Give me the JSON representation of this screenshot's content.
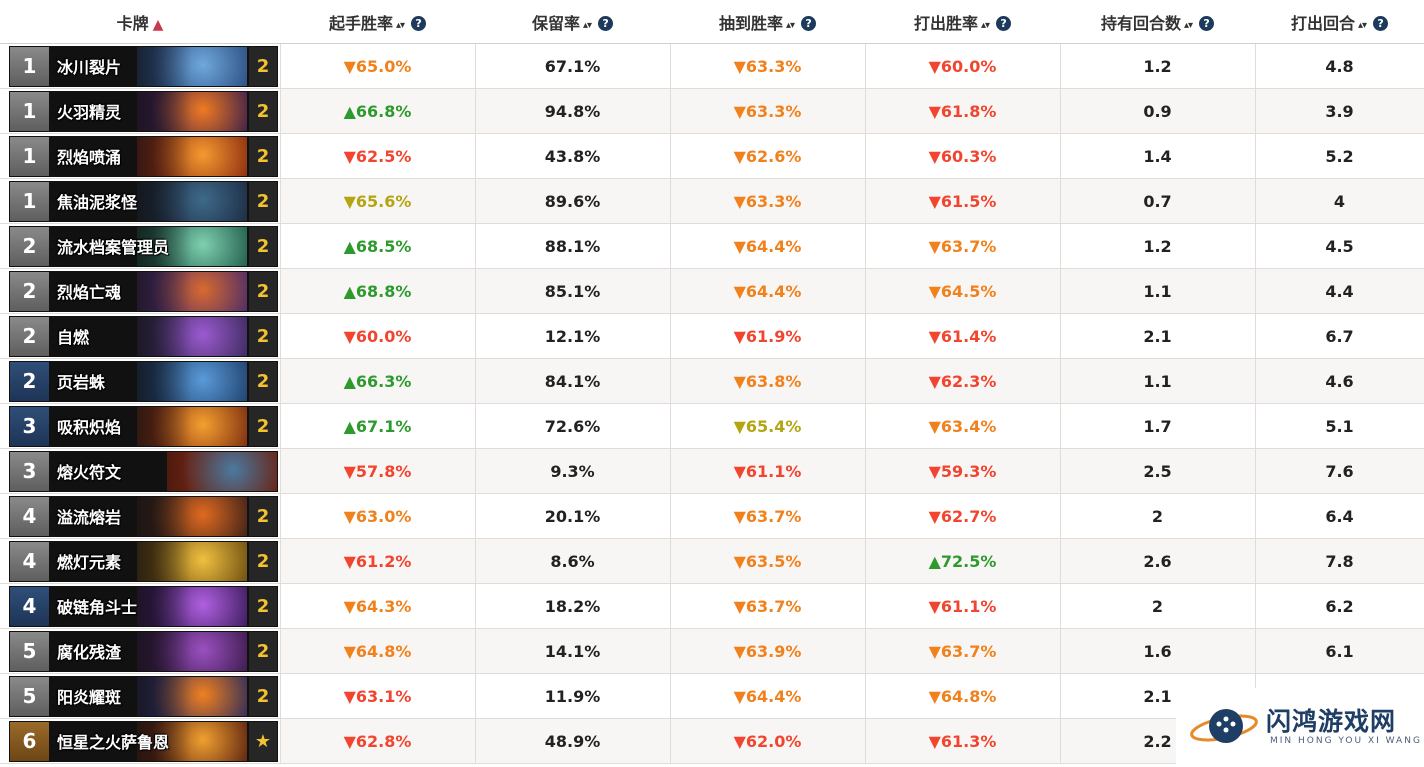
{
  "columns": {
    "card": "卡牌",
    "mulligan_winrate": "起手胜率",
    "keep_rate": "保留率",
    "drawn_winrate": "抽到胜率",
    "played_winrate": "打出胜率",
    "turns_held": "持有回合数",
    "turn_played": "打出回合"
  },
  "sort_icons": {
    "active": "▲",
    "inactive": "▴▾"
  },
  "help_icon": "?",
  "rows": [
    {
      "cost": "1",
      "name": "冰川裂片",
      "qty": "2",
      "mul": "▼65.0%",
      "keep": "67.1%",
      "drawn": "▼63.3%",
      "played": "▼60.0%",
      "held": "1.2",
      "turn": "4.8",
      "mul_c": "tr-orange",
      "drawn_c": "tr-orange",
      "played_c": "tr-down",
      "cost_c": "c-gray",
      "art": [
        "#2a4c80",
        "#6fa8dc"
      ]
    },
    {
      "cost": "1",
      "name": "火羽精灵",
      "qty": "2",
      "mul": "▲66.8%",
      "keep": "94.8%",
      "drawn": "▼63.3%",
      "played": "▼61.8%",
      "held": "0.9",
      "turn": "3.9",
      "mul_c": "tr-up",
      "drawn_c": "tr-orange",
      "played_c": "tr-down",
      "cost_c": "c-gray",
      "art": [
        "#3a1d4a",
        "#f07a22"
      ]
    },
    {
      "cost": "1",
      "name": "烈焰喷涌",
      "qty": "2",
      "mul": "▼62.5%",
      "keep": "43.8%",
      "drawn": "▼62.6%",
      "played": "▼60.3%",
      "held": "1.4",
      "turn": "5.2",
      "mul_c": "tr-down",
      "drawn_c": "tr-orange",
      "played_c": "tr-down",
      "cost_c": "c-gray",
      "art": [
        "#8a2a10",
        "#f59a30"
      ]
    },
    {
      "cost": "1",
      "name": "焦油泥浆怪",
      "qty": "2",
      "mul": "▼65.6%",
      "keep": "89.6%",
      "drawn": "▼63.3%",
      "played": "▼61.5%",
      "held": "0.7",
      "turn": "4",
      "mul_c": "tr-olive",
      "drawn_c": "tr-orange",
      "played_c": "tr-down",
      "cost_c": "c-gray",
      "art": [
        "#1c2a40",
        "#3e6a8a"
      ]
    },
    {
      "cost": "2",
      "name": "流水档案管理员",
      "qty": "2",
      "mul": "▲68.5%",
      "keep": "88.1%",
      "drawn": "▼64.4%",
      "played": "▼63.7%",
      "held": "1.2",
      "turn": "4.5",
      "mul_c": "tr-up",
      "drawn_c": "tr-orange",
      "played_c": "tr-orange",
      "cost_c": "c-gray",
      "art": [
        "#1f5a4a",
        "#7fd0b0"
      ]
    },
    {
      "cost": "2",
      "name": "烈焰亡魂",
      "qty": "2",
      "mul": "▲68.8%",
      "keep": "85.1%",
      "drawn": "▼64.4%",
      "played": "▼64.5%",
      "held": "1.1",
      "turn": "4.4",
      "mul_c": "tr-up",
      "drawn_c": "tr-orange",
      "played_c": "tr-orange",
      "cost_c": "c-gray",
      "art": [
        "#4a2a6a",
        "#d86a30"
      ]
    },
    {
      "cost": "2",
      "name": "自燃",
      "qty": "2",
      "mul": "▼60.0%",
      "keep": "12.1%",
      "drawn": "▼61.9%",
      "played": "▼61.4%",
      "held": "2.1",
      "turn": "6.7",
      "mul_c": "tr-down",
      "drawn_c": "tr-down",
      "played_c": "tr-down",
      "cost_c": "c-gray",
      "art": [
        "#3a2a5a",
        "#9b5ad0"
      ]
    },
    {
      "cost": "2",
      "name": "页岩蛛",
      "qty": "2",
      "mul": "▲66.3%",
      "keep": "84.1%",
      "drawn": "▼63.8%",
      "played": "▼62.3%",
      "held": "1.1",
      "turn": "4.6",
      "mul_c": "tr-up",
      "drawn_c": "tr-orange",
      "played_c": "tr-down",
      "cost_c": "c-blue",
      "art": [
        "#1e3f6a",
        "#5a9ad8"
      ]
    },
    {
      "cost": "3",
      "name": "吸积炽焰",
      "qty": "2",
      "mul": "▲67.1%",
      "keep": "72.6%",
      "drawn": "▼65.4%",
      "played": "▼63.4%",
      "held": "1.7",
      "turn": "5.1",
      "mul_c": "tr-up",
      "drawn_c": "tr-olive",
      "played_c": "tr-orange",
      "cost_c": "c-blue",
      "art": [
        "#7a2a10",
        "#f5a030"
      ]
    },
    {
      "cost": "3",
      "name": "熔火符文",
      "qty": "",
      "mul": "▼57.8%",
      "keep": "9.3%",
      "drawn": "▼61.1%",
      "played": "▼59.3%",
      "held": "2.5",
      "turn": "7.6",
      "mul_c": "tr-down",
      "drawn_c": "tr-down",
      "played_c": "tr-down",
      "cost_c": "c-gray",
      "art": [
        "#6a2010",
        "#4a7aa0"
      ]
    },
    {
      "cost": "4",
      "name": "溢流熔岩",
      "qty": "2",
      "mul": "▼63.0%",
      "keep": "20.1%",
      "drawn": "▼63.7%",
      "played": "▼62.7%",
      "held": "2",
      "turn": "6.4",
      "mul_c": "tr-orange",
      "drawn_c": "tr-orange",
      "played_c": "tr-down",
      "cost_c": "c-gray",
      "art": [
        "#3a2018",
        "#e06a20"
      ]
    },
    {
      "cost": "4",
      "name": "燃灯元素",
      "qty": "2",
      "mul": "▼61.2%",
      "keep": "8.6%",
      "drawn": "▼63.5%",
      "played": "▲72.5%",
      "held": "2.6",
      "turn": "7.8",
      "mul_c": "tr-down",
      "drawn_c": "tr-orange",
      "played_c": "tr-up",
      "cost_c": "c-gray",
      "art": [
        "#6a4a10",
        "#f0c040"
      ]
    },
    {
      "cost": "4",
      "name": "破链角斗士",
      "qty": "2",
      "mul": "▼64.3%",
      "keep": "18.2%",
      "drawn": "▼63.7%",
      "played": "▼61.1%",
      "held": "2",
      "turn": "6.2",
      "mul_c": "tr-orange",
      "drawn_c": "tr-orange",
      "played_c": "tr-down",
      "cost_c": "c-blue",
      "art": [
        "#3a1a5a",
        "#b060e0"
      ]
    },
    {
      "cost": "5",
      "name": "腐化残渣",
      "qty": "2",
      "mul": "▼64.8%",
      "keep": "14.1%",
      "drawn": "▼63.9%",
      "played": "▼63.7%",
      "held": "1.6",
      "turn": "6.1",
      "mul_c": "tr-orange",
      "drawn_c": "tr-orange",
      "played_c": "tr-orange",
      "cost_c": "c-gray",
      "art": [
        "#3a1a4a",
        "#9a50c0"
      ]
    },
    {
      "cost": "5",
      "name": "阳炎耀斑",
      "qty": "2",
      "mul": "▼63.1%",
      "keep": "11.9%",
      "drawn": "▼64.4%",
      "played": "▼64.8%",
      "held": "2.1",
      "turn": "",
      "mul_c": "tr-down",
      "drawn_c": "tr-orange",
      "played_c": "tr-orange",
      "cost_c": "c-gray",
      "art": [
        "#2a2a5a",
        "#f08020"
      ]
    },
    {
      "cost": "6",
      "name": "恒星之火萨鲁恩",
      "qty": "★",
      "mul": "▼62.8%",
      "keep": "48.9%",
      "drawn": "▼62.0%",
      "played": "▼61.3%",
      "held": "2.2",
      "turn": "",
      "mul_c": "tr-down",
      "drawn_c": "tr-down",
      "played_c": "tr-down",
      "cost_c": "c-brown",
      "art": [
        "#5a2010",
        "#f0a030"
      ]
    }
  ],
  "watermark": {
    "title": "闪鸿游戏网",
    "subtitle": "MIN HONG YOU XI WANG"
  }
}
